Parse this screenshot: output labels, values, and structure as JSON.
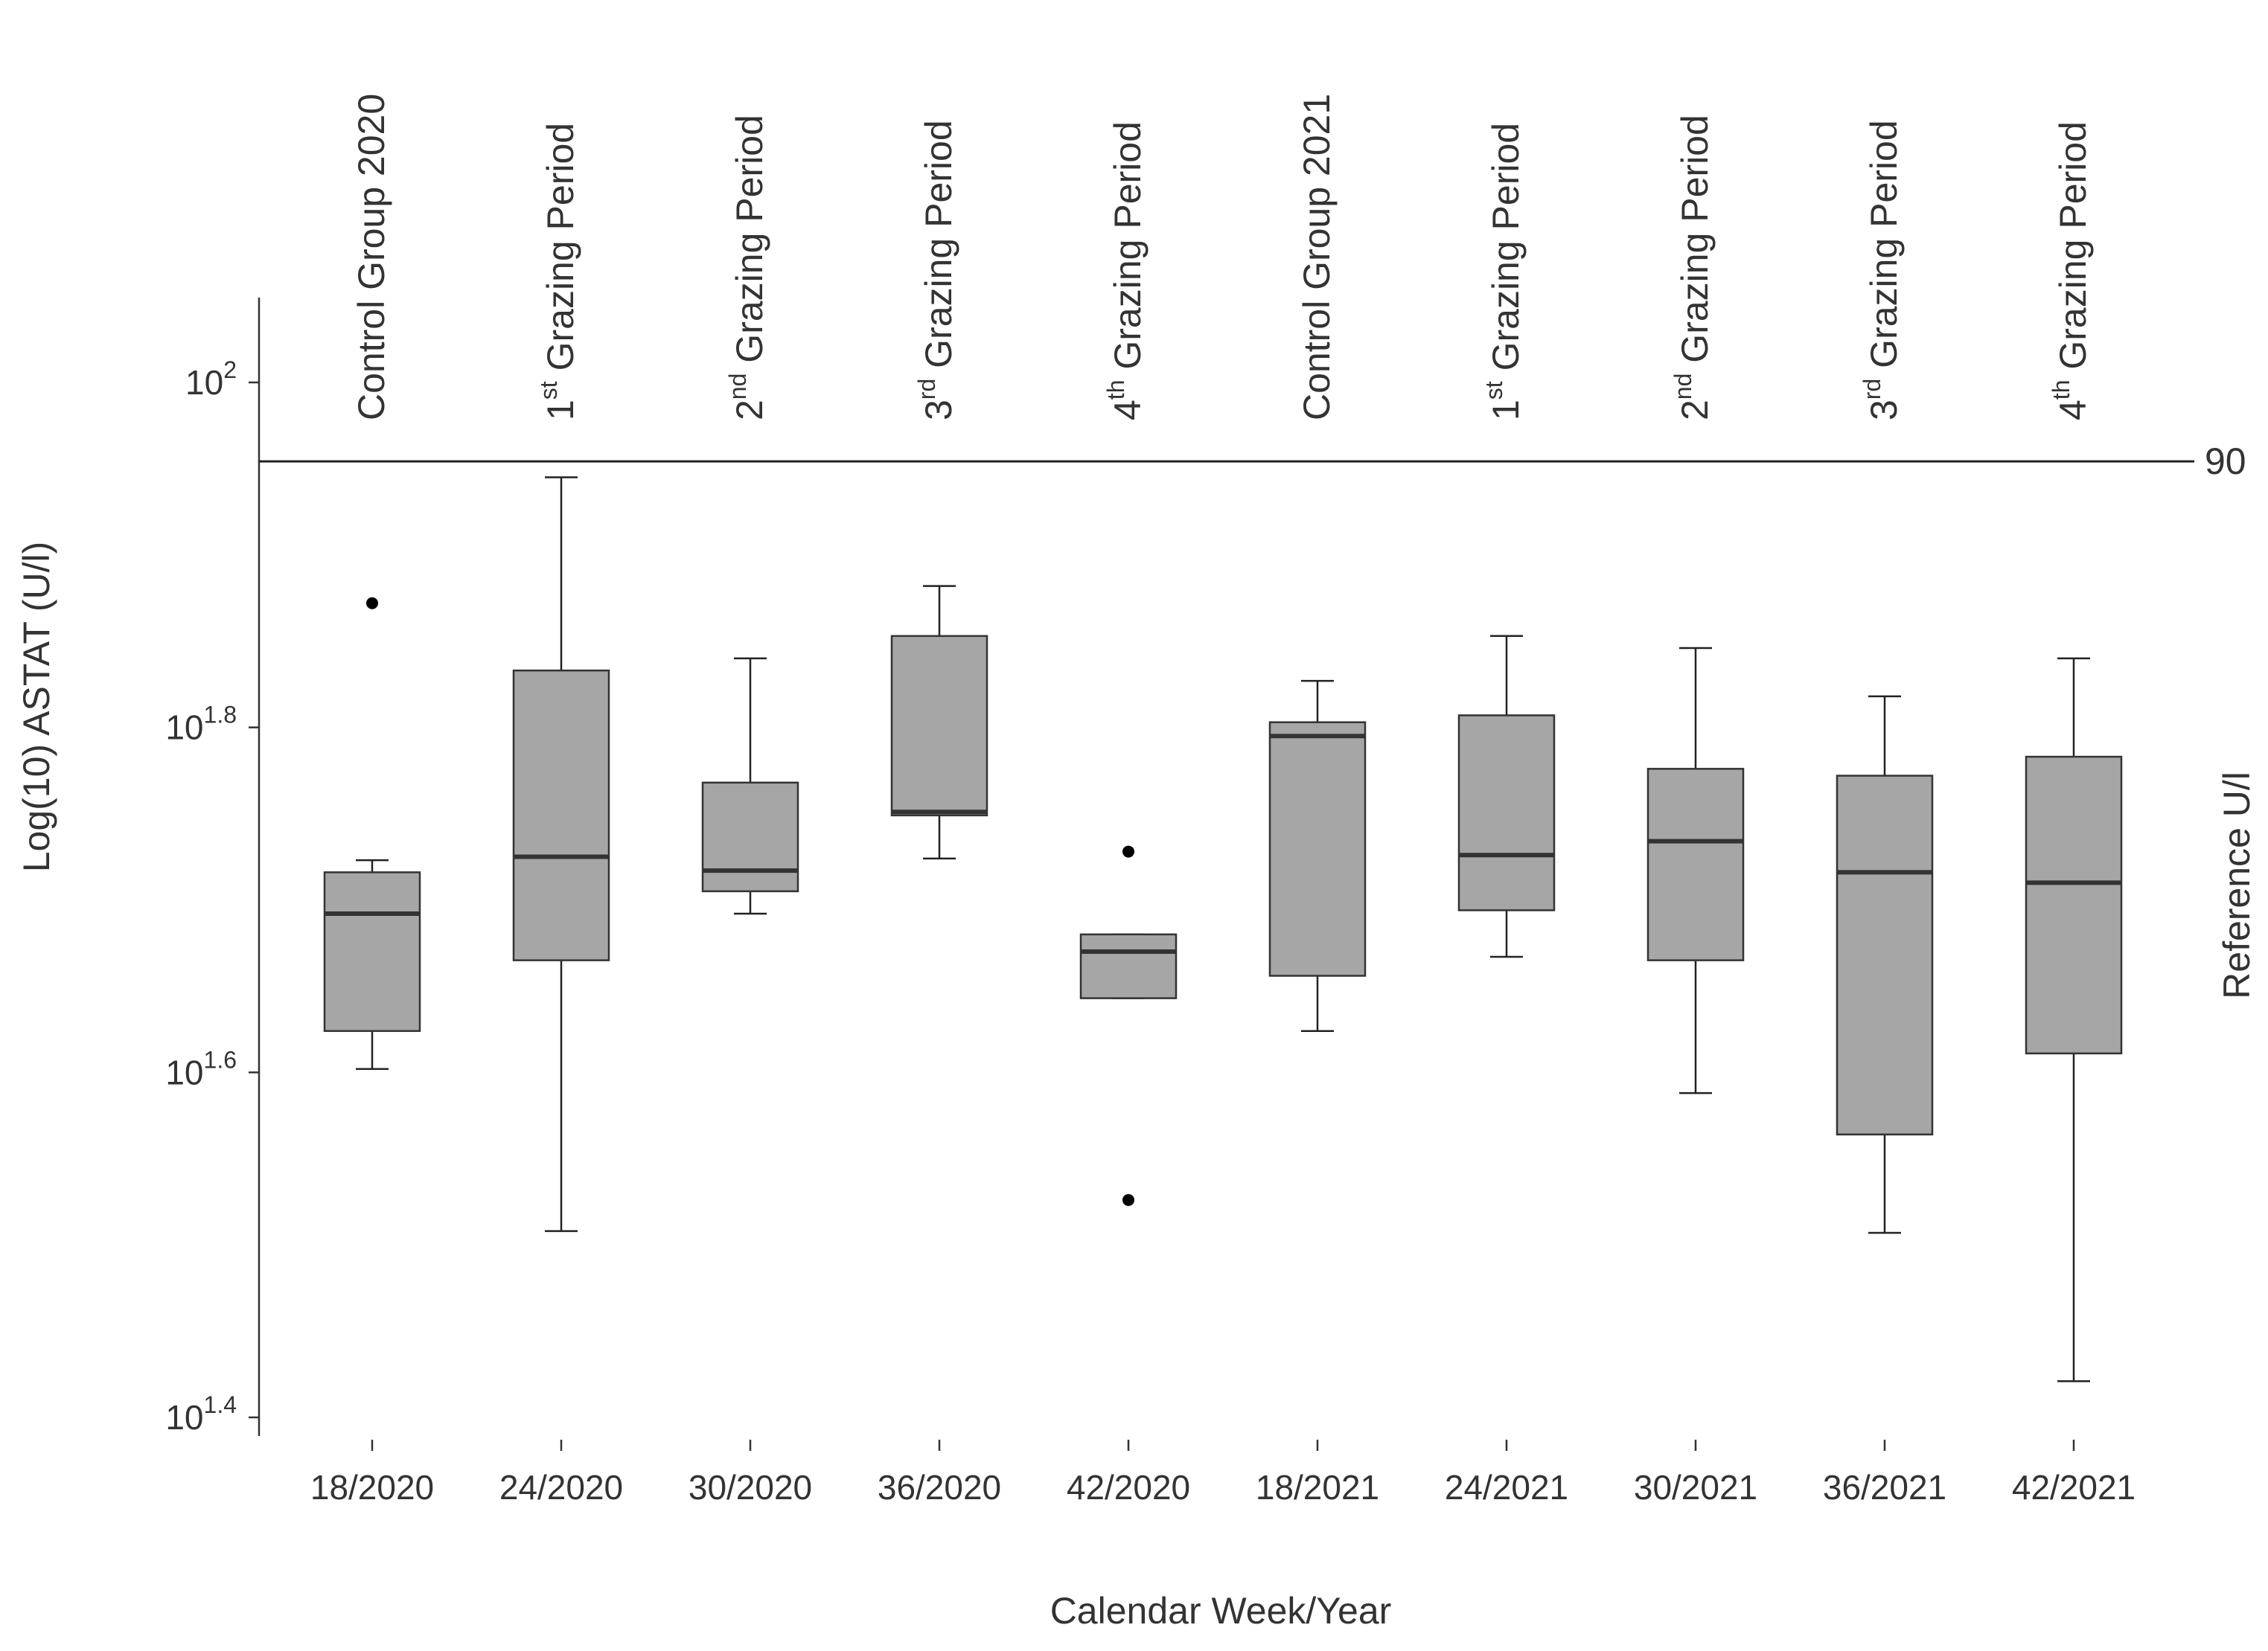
{
  "chart_data": {
    "type": "box",
    "title": "",
    "xlabel": "Calendar Week/Year",
    "ylabel": "Log(10) ASTAT (U/l)",
    "right_label": "Reference U/l",
    "y_scale": "log10",
    "ylim_log10": [
      1.37,
      2.05
    ],
    "y_ticks": [
      {
        "base": "10",
        "exp": "1.4",
        "value_log10": 1.4
      },
      {
        "base": "10",
        "exp": "1.6",
        "value_log10": 1.6
      },
      {
        "base": "10",
        "exp": "1.8",
        "value_log10": 1.8
      },
      {
        "base": "10",
        "exp": "2",
        "value_log10": 2.0
      }
    ],
    "reference_line": {
      "value": 90,
      "label": "90"
    },
    "categories": [
      "18/2020",
      "24/2020",
      "30/2020",
      "36/2020",
      "42/2020",
      "18/2021",
      "24/2021",
      "30/2021",
      "36/2021",
      "42/2021"
    ],
    "group_labels": [
      {
        "main": "Control Group 2020",
        "ordinal": "",
        "sup": "",
        "suffix": ""
      },
      {
        "main": "",
        "ordinal": "1",
        "sup": "st",
        "suffix": " Grazing Period"
      },
      {
        "main": "",
        "ordinal": "2",
        "sup": "nd",
        "suffix": " Grazing Period"
      },
      {
        "main": "",
        "ordinal": "3",
        "sup": "rd",
        "suffix": " Grazing Period"
      },
      {
        "main": "",
        "ordinal": "4",
        "sup": "th",
        "suffix": " Grazing Period"
      },
      {
        "main": "Control Group 2021",
        "ordinal": "",
        "sup": "",
        "suffix": ""
      },
      {
        "main": "",
        "ordinal": "1",
        "sup": "st",
        "suffix": " Grazing Period"
      },
      {
        "main": "",
        "ordinal": "2",
        "sup": "nd",
        "suffix": " Grazing Period"
      },
      {
        "main": "",
        "ordinal": "3",
        "sup": "rd",
        "suffix": " Grazing Period"
      },
      {
        "main": "",
        "ordinal": "4",
        "sup": "th",
        "suffix": " Grazing Period"
      }
    ],
    "boxes_log10": [
      {
        "whisker_low": 1.602,
        "q1": 1.624,
        "median": 1.692,
        "q3": 1.716,
        "whisker_high": 1.723,
        "outliers": [
          1.872
        ]
      },
      {
        "whisker_low": 1.508,
        "q1": 1.665,
        "median": 1.725,
        "q3": 1.833,
        "whisker_high": 1.945,
        "outliers": []
      },
      {
        "whisker_low": 1.692,
        "q1": 1.705,
        "median": 1.717,
        "q3": 1.768,
        "whisker_high": 1.84,
        "outliers": []
      },
      {
        "whisker_low": 1.724,
        "q1": 1.749,
        "median": 1.751,
        "q3": 1.853,
        "whisker_high": 1.882,
        "outliers": []
      },
      {
        "whisker_low": 1.643,
        "q1": 1.643,
        "median": 1.67,
        "q3": 1.68,
        "whisker_high": 1.68,
        "outliers": [
          1.728,
          1.526
        ]
      },
      {
        "whisker_low": 1.624,
        "q1": 1.656,
        "median": 1.795,
        "q3": 1.803,
        "whisker_high": 1.827,
        "outliers": []
      },
      {
        "whisker_low": 1.667,
        "q1": 1.694,
        "median": 1.726,
        "q3": 1.807,
        "whisker_high": 1.853,
        "outliers": []
      },
      {
        "whisker_low": 1.588,
        "q1": 1.665,
        "median": 1.734,
        "q3": 1.776,
        "whisker_high": 1.846,
        "outliers": []
      },
      {
        "whisker_low": 1.507,
        "q1": 1.564,
        "median": 1.716,
        "q3": 1.772,
        "whisker_high": 1.818,
        "outliers": []
      },
      {
        "whisker_low": 1.421,
        "q1": 1.611,
        "median": 1.71,
        "q3": 1.783,
        "whisker_high": 1.84,
        "outliers": []
      }
    ]
  }
}
